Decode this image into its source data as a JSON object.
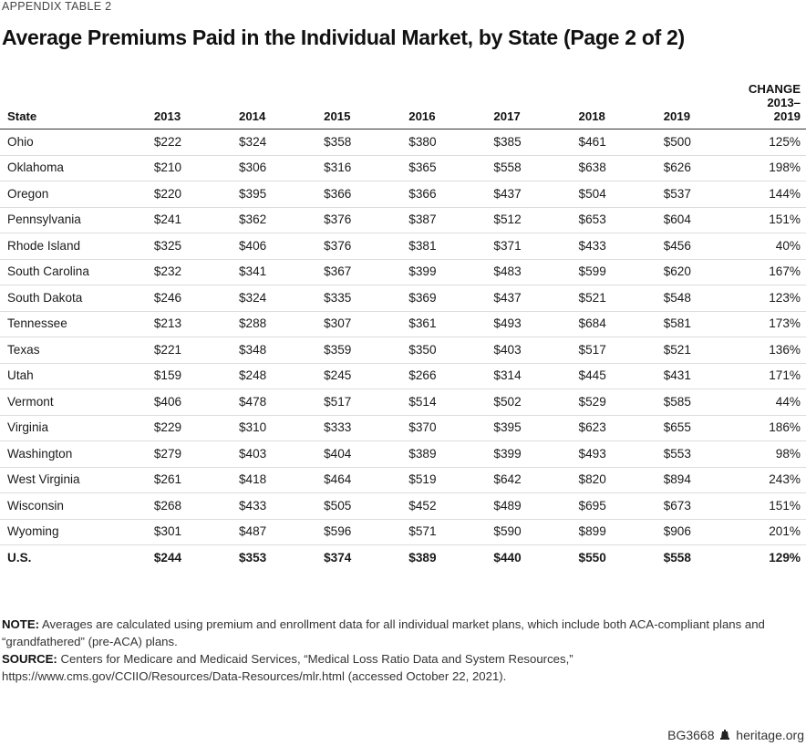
{
  "kicker": "APPENDIX TABLE 2",
  "title": "Average Premiums Paid in the Individual Market, by State (Page 2 of 2)",
  "table": {
    "headers": {
      "state": "State",
      "years": [
        "2013",
        "2014",
        "2015",
        "2016",
        "2017",
        "2018",
        "2019"
      ],
      "change_line1": "CHANGE",
      "change_line2": "2013–2019"
    },
    "rows": [
      {
        "state": "Ohio",
        "values": [
          "$222",
          "$324",
          "$358",
          "$380",
          "$385",
          "$461",
          "$500"
        ],
        "change": "125%"
      },
      {
        "state": "Oklahoma",
        "values": [
          "$210",
          "$306",
          "$316",
          "$365",
          "$558",
          "$638",
          "$626"
        ],
        "change": "198%"
      },
      {
        "state": "Oregon",
        "values": [
          "$220",
          "$395",
          "$366",
          "$366",
          "$437",
          "$504",
          "$537"
        ],
        "change": "144%"
      },
      {
        "state": "Pennsylvania",
        "values": [
          "$241",
          "$362",
          "$376",
          "$387",
          "$512",
          "$653",
          "$604"
        ],
        "change": "151%"
      },
      {
        "state": "Rhode Island",
        "values": [
          "$325",
          "$406",
          "$376",
          "$381",
          "$371",
          "$433",
          "$456"
        ],
        "change": "40%"
      },
      {
        "state": "South Carolina",
        "values": [
          "$232",
          "$341",
          "$367",
          "$399",
          "$483",
          "$599",
          "$620"
        ],
        "change": "167%"
      },
      {
        "state": "South Dakota",
        "values": [
          "$246",
          "$324",
          "$335",
          "$369",
          "$437",
          "$521",
          "$548"
        ],
        "change": "123%"
      },
      {
        "state": "Tennessee",
        "values": [
          "$213",
          "$288",
          "$307",
          "$361",
          "$493",
          "$684",
          "$581"
        ],
        "change": "173%"
      },
      {
        "state": "Texas",
        "values": [
          "$221",
          "$348",
          "$359",
          "$350",
          "$403",
          "$517",
          "$521"
        ],
        "change": "136%"
      },
      {
        "state": "Utah",
        "values": [
          "$159",
          "$248",
          "$245",
          "$266",
          "$314",
          "$445",
          "$431"
        ],
        "change": "171%"
      },
      {
        "state": "Vermont",
        "values": [
          "$406",
          "$478",
          "$517",
          "$514",
          "$502",
          "$529",
          "$585"
        ],
        "change": "44%"
      },
      {
        "state": "Virginia",
        "values": [
          "$229",
          "$310",
          "$333",
          "$370",
          "$395",
          "$623",
          "$655"
        ],
        "change": "186%"
      },
      {
        "state": "Washington",
        "values": [
          "$279",
          "$403",
          "$404",
          "$389",
          "$399",
          "$493",
          "$553"
        ],
        "change": "98%"
      },
      {
        "state": "West Virginia",
        "values": [
          "$261",
          "$418",
          "$464",
          "$519",
          "$642",
          "$820",
          "$894"
        ],
        "change": "243%"
      },
      {
        "state": "Wisconsin",
        "values": [
          "$268",
          "$433",
          "$505",
          "$452",
          "$489",
          "$695",
          "$673"
        ],
        "change": "151%"
      },
      {
        "state": "Wyoming",
        "values": [
          "$301",
          "$487",
          "$596",
          "$571",
          "$590",
          "$899",
          "$906"
        ],
        "change": "201%"
      }
    ],
    "total": {
      "state": "U.S.",
      "values": [
        "$244",
        "$353",
        "$374",
        "$389",
        "$440",
        "$550",
        "$558"
      ],
      "change": "129%"
    }
  },
  "note": {
    "label": "NOTE:",
    "text": " Averages are calculated using premium and enrollment data for all individual market plans, which include both ACA-compliant plans and “grandfathered” (pre-ACA) plans."
  },
  "source": {
    "label": "SOURCE:",
    "text": " Centers for Medicare and Medicaid Services, “Medical Loss Ratio Data and System Resources,” https://www.cms.gov/CCIIO/Resources/Data-Resources/mlr.html (accessed October 22, 2021)."
  },
  "footer": {
    "code": "BG3668",
    "site": "heritage.org",
    "icon": "liberty-bell-icon"
  }
}
